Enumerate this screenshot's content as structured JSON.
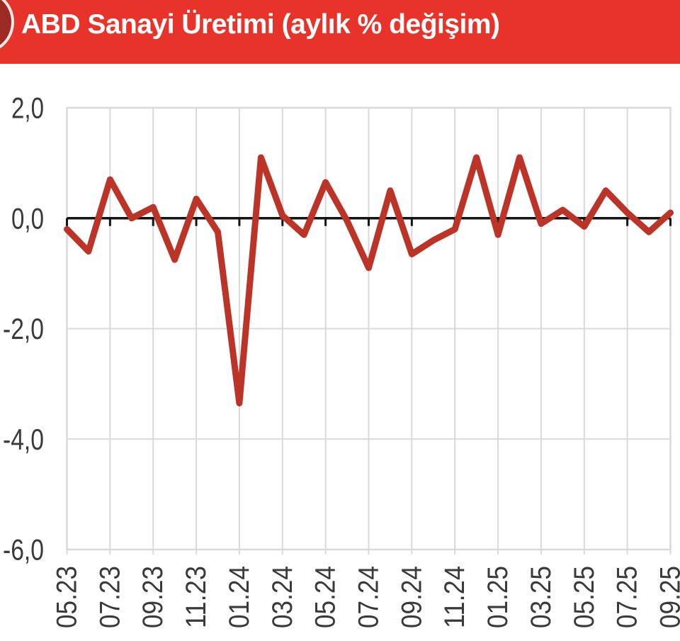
{
  "header": {
    "title": "ABD Sanayi Üretimi (aylık % değişim)",
    "background_color": "#e8332a",
    "bullet_color": "#9e2b23"
  },
  "chart_data": {
    "type": "line",
    "title": "ABD Sanayi Üretimi (aylık % değişim)",
    "xlabel": "",
    "ylabel": "",
    "x": [
      "05.23",
      "06.23",
      "07.23",
      "08.23",
      "09.23",
      "10.23",
      "11.23",
      "12.23",
      "01.24",
      "02.24",
      "03.24",
      "04.24",
      "05.24",
      "06.24",
      "07.24",
      "08.24",
      "09.24",
      "10.24",
      "11.24",
      "12.24",
      "01.25",
      "02.25",
      "03.25",
      "04.25",
      "05.25",
      "06.25",
      "07.25",
      "08.25",
      "09.25"
    ],
    "values": [
      -0.2,
      -0.6,
      0.7,
      0.0,
      0.2,
      -0.75,
      0.35,
      -0.25,
      -3.35,
      1.1,
      0.05,
      -0.3,
      0.65,
      -0.05,
      -0.9,
      0.5,
      -0.65,
      -0.4,
      -0.2,
      1.1,
      -0.3,
      1.1,
      -0.1,
      0.15,
      -0.15,
      0.5,
      0.1,
      -0.25,
      0.1
    ],
    "x_tick_labels": [
      "05.23",
      "07.23",
      "09.23",
      "11.23",
      "01.24",
      "03.24",
      "05.24",
      "07.24",
      "09.24",
      "11.24",
      "01.25",
      "03.25",
      "05.25",
      "07.25",
      "09.25"
    ],
    "x_tick_every_n_months": 2,
    "y_tick_labels": [
      "2,0",
      "0,0",
      "-2,0",
      "-4,0",
      "-6,0"
    ],
    "y_tick_values": [
      2,
      0,
      -2,
      -4,
      -6
    ],
    "ylim": [
      -6,
      2
    ],
    "grid": "on",
    "legend": "none",
    "line_color": "#bc3428",
    "grid_color": "#d9d9d9",
    "axis_color": "#141414",
    "label_color": "#3a3a3a"
  }
}
